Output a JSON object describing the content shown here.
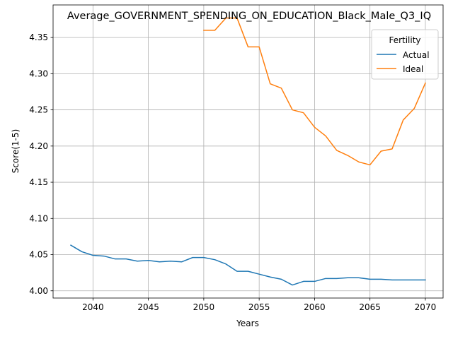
{
  "chart_data": {
    "type": "line",
    "title": "Average_GOVERNMENT_SPENDING_ON_EDUCATION_Black_Male_Q3_IQ",
    "xlabel": "Years",
    "ylabel": "Score(1-5)",
    "xlim": [
      2036.4,
      2071.6
    ],
    "ylim": [
      3.99,
      4.395
    ],
    "x_ticks": [
      2040,
      2045,
      2050,
      2055,
      2060,
      2065,
      2070
    ],
    "x_tick_labels": [
      "2040",
      "2045",
      "2050",
      "2055",
      "2060",
      "2065",
      "2070"
    ],
    "y_ticks": [
      4.0,
      4.05,
      4.1,
      4.15,
      4.2,
      4.25,
      4.3,
      4.35
    ],
    "y_tick_labels": [
      "4.00",
      "4.05",
      "4.10",
      "4.15",
      "4.20",
      "4.25",
      "4.30",
      "4.35"
    ],
    "grid": true,
    "legend": {
      "title": "Fertility",
      "position": "top-right"
    },
    "series": [
      {
        "name": "Actual",
        "color": "#1f77b4",
        "x": [
          2038,
          2039,
          2040,
          2041,
          2042,
          2043,
          2044,
          2045,
          2046,
          2047,
          2048,
          2049,
          2050,
          2051,
          2052,
          2053,
          2054,
          2055,
          2056,
          2057,
          2058,
          2059,
          2060,
          2061,
          2062,
          2063,
          2064,
          2065,
          2066,
          2067,
          2068,
          2069,
          2070
        ],
        "y": [
          4.063,
          4.054,
          4.049,
          4.048,
          4.044,
          4.044,
          4.041,
          4.042,
          4.04,
          4.041,
          4.04,
          4.046,
          4.046,
          4.043,
          4.037,
          4.027,
          4.027,
          4.023,
          4.019,
          4.016,
          4.008,
          4.013,
          4.013,
          4.017,
          4.017,
          4.018,
          4.018,
          4.016,
          4.016,
          4.015,
          4.015,
          4.015,
          4.015
        ]
      },
      {
        "name": "Ideal",
        "color": "#ff7f0e",
        "x": [
          2050,
          2051,
          2052,
          2053,
          2054,
          2055,
          2056,
          2057,
          2058,
          2059,
          2060,
          2061,
          2062,
          2063,
          2064,
          2065,
          2066,
          2067,
          2068,
          2069,
          2070
        ],
        "y": [
          4.36,
          4.36,
          4.377,
          4.377,
          4.337,
          4.337,
          4.286,
          4.28,
          4.25,
          4.246,
          4.226,
          4.214,
          4.194,
          4.187,
          4.178,
          4.174,
          4.193,
          4.196,
          4.236,
          4.252,
          4.287
        ]
      }
    ]
  }
}
